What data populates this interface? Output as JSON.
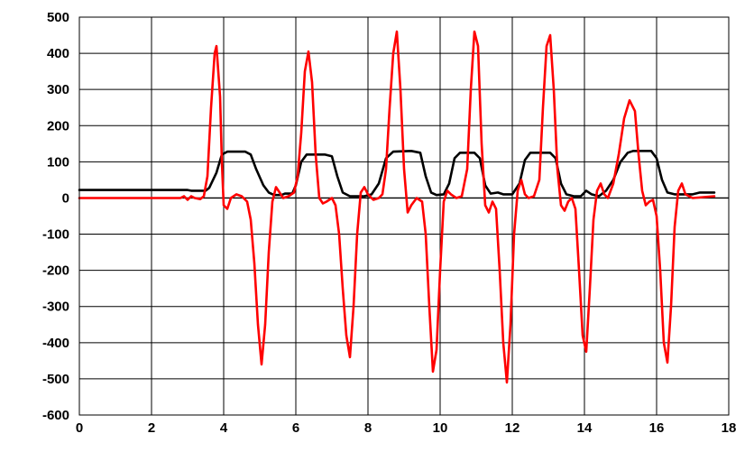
{
  "chart_data": {
    "type": "line",
    "title": "",
    "xlabel": "",
    "ylabel": "",
    "xlim": [
      0,
      18
    ],
    "ylim": [
      -600,
      500
    ],
    "grid": true,
    "legend": "none",
    "x_ticks": [
      0,
      2,
      4,
      6,
      8,
      10,
      12,
      14,
      16,
      18
    ],
    "y_ticks": [
      500,
      400,
      300,
      200,
      100,
      0,
      -100,
      -200,
      -300,
      -400,
      -500,
      -600
    ],
    "series": [
      {
        "color": "#000000",
        "points": [
          [
            0,
            22
          ],
          [
            2.9,
            22
          ],
          [
            3.0,
            22
          ],
          [
            3.1,
            20
          ],
          [
            3.3,
            20
          ],
          [
            3.5,
            20
          ],
          [
            3.6,
            28
          ],
          [
            3.8,
            70
          ],
          [
            3.95,
            120
          ],
          [
            4.1,
            128
          ],
          [
            4.6,
            128
          ],
          [
            4.75,
            120
          ],
          [
            4.9,
            80
          ],
          [
            5.1,
            35
          ],
          [
            5.25,
            15
          ],
          [
            5.4,
            8
          ],
          [
            5.6,
            8
          ],
          [
            5.7,
            12
          ],
          [
            5.9,
            12
          ],
          [
            6.0,
            35
          ],
          [
            6.15,
            100
          ],
          [
            6.3,
            120
          ],
          [
            6.8,
            120
          ],
          [
            7.0,
            115
          ],
          [
            7.15,
            60
          ],
          [
            7.3,
            15
          ],
          [
            7.5,
            5
          ],
          [
            7.9,
            5
          ],
          [
            8.1,
            10
          ],
          [
            8.3,
            40
          ],
          [
            8.5,
            110
          ],
          [
            8.7,
            128
          ],
          [
            9.2,
            130
          ],
          [
            9.45,
            125
          ],
          [
            9.6,
            60
          ],
          [
            9.75,
            15
          ],
          [
            9.9,
            8
          ],
          [
            10.1,
            10
          ],
          [
            10.25,
            40
          ],
          [
            10.4,
            110
          ],
          [
            10.55,
            125
          ],
          [
            10.95,
            125
          ],
          [
            11.1,
            110
          ],
          [
            11.25,
            35
          ],
          [
            11.4,
            12
          ],
          [
            11.6,
            15
          ],
          [
            11.75,
            10
          ],
          [
            12.0,
            10
          ],
          [
            12.2,
            40
          ],
          [
            12.35,
            105
          ],
          [
            12.5,
            125
          ],
          [
            13.05,
            125
          ],
          [
            13.2,
            110
          ],
          [
            13.35,
            40
          ],
          [
            13.5,
            10
          ],
          [
            13.7,
            5
          ],
          [
            13.9,
            5
          ],
          [
            14.05,
            20
          ],
          [
            14.2,
            10
          ],
          [
            14.4,
            5
          ],
          [
            14.6,
            20
          ],
          [
            14.8,
            50
          ],
          [
            15.0,
            100
          ],
          [
            15.2,
            125
          ],
          [
            15.35,
            130
          ],
          [
            15.85,
            130
          ],
          [
            16.0,
            110
          ],
          [
            16.15,
            50
          ],
          [
            16.3,
            15
          ],
          [
            16.5,
            10
          ],
          [
            16.7,
            10
          ],
          [
            17.0,
            10
          ],
          [
            17.2,
            15
          ],
          [
            17.6,
            15
          ]
        ]
      },
      {
        "color": "#ff0000",
        "points": [
          [
            0,
            0
          ],
          [
            2.6,
            0
          ],
          [
            2.8,
            0
          ],
          [
            2.9,
            5
          ],
          [
            3.0,
            -5
          ],
          [
            3.1,
            5
          ],
          [
            3.2,
            0
          ],
          [
            3.35,
            -3
          ],
          [
            3.45,
            5
          ],
          [
            3.55,
            60
          ],
          [
            3.65,
            250
          ],
          [
            3.75,
            400
          ],
          [
            3.8,
            420
          ],
          [
            3.9,
            280
          ],
          [
            3.95,
            100
          ],
          [
            4.0,
            -20
          ],
          [
            4.1,
            -30
          ],
          [
            4.2,
            0
          ],
          [
            4.35,
            10
          ],
          [
            4.5,
            5
          ],
          [
            4.65,
            -10
          ],
          [
            4.75,
            -60
          ],
          [
            4.85,
            -180
          ],
          [
            4.95,
            -350
          ],
          [
            5.05,
            -460
          ],
          [
            5.15,
            -350
          ],
          [
            5.25,
            -150
          ],
          [
            5.35,
            -10
          ],
          [
            5.45,
            30
          ],
          [
            5.55,
            15
          ],
          [
            5.65,
            0
          ],
          [
            5.8,
            5
          ],
          [
            5.95,
            15
          ],
          [
            6.05,
            60
          ],
          [
            6.15,
            180
          ],
          [
            6.25,
            350
          ],
          [
            6.35,
            405
          ],
          [
            6.45,
            320
          ],
          [
            6.55,
            120
          ],
          [
            6.65,
            0
          ],
          [
            6.75,
            -15
          ],
          [
            6.85,
            -10
          ],
          [
            7.0,
            0
          ],
          [
            7.1,
            -20
          ],
          [
            7.2,
            -100
          ],
          [
            7.3,
            -250
          ],
          [
            7.4,
            -380
          ],
          [
            7.5,
            -440
          ],
          [
            7.6,
            -300
          ],
          [
            7.7,
            -100
          ],
          [
            7.8,
            15
          ],
          [
            7.9,
            30
          ],
          [
            8.0,
            10
          ],
          [
            8.15,
            -5
          ],
          [
            8.3,
            0
          ],
          [
            8.4,
            10
          ],
          [
            8.5,
            80
          ],
          [
            8.6,
            250
          ],
          [
            8.7,
            400
          ],
          [
            8.8,
            460
          ],
          [
            8.9,
            300
          ],
          [
            9.0,
            80
          ],
          [
            9.1,
            -40
          ],
          [
            9.2,
            -20
          ],
          [
            9.35,
            0
          ],
          [
            9.5,
            -10
          ],
          [
            9.6,
            -100
          ],
          [
            9.7,
            -300
          ],
          [
            9.8,
            -480
          ],
          [
            9.9,
            -420
          ],
          [
            10.0,
            -200
          ],
          [
            10.1,
            -10
          ],
          [
            10.2,
            20
          ],
          [
            10.3,
            10
          ],
          [
            10.45,
            0
          ],
          [
            10.6,
            5
          ],
          [
            10.75,
            80
          ],
          [
            10.85,
            300
          ],
          [
            10.95,
            460
          ],
          [
            11.05,
            420
          ],
          [
            11.15,
            150
          ],
          [
            11.25,
            -20
          ],
          [
            11.35,
            -40
          ],
          [
            11.45,
            -10
          ],
          [
            11.55,
            -30
          ],
          [
            11.65,
            -200
          ],
          [
            11.75,
            -400
          ],
          [
            11.85,
            -510
          ],
          [
            11.95,
            -350
          ],
          [
            12.05,
            -100
          ],
          [
            12.15,
            20
          ],
          [
            12.25,
            50
          ],
          [
            12.35,
            10
          ],
          [
            12.45,
            0
          ],
          [
            12.6,
            5
          ],
          [
            12.75,
            50
          ],
          [
            12.85,
            250
          ],
          [
            12.95,
            420
          ],
          [
            13.05,
            450
          ],
          [
            13.15,
            300
          ],
          [
            13.25,
            80
          ],
          [
            13.35,
            -20
          ],
          [
            13.45,
            -35
          ],
          [
            13.55,
            -10
          ],
          [
            13.65,
            0
          ],
          [
            13.75,
            -30
          ],
          [
            13.85,
            -200
          ],
          [
            13.95,
            -380
          ],
          [
            14.05,
            -425
          ],
          [
            14.15,
            -250
          ],
          [
            14.25,
            -60
          ],
          [
            14.35,
            20
          ],
          [
            14.45,
            40
          ],
          [
            14.55,
            10
          ],
          [
            14.65,
            0
          ],
          [
            14.8,
            40
          ],
          [
            14.95,
            120
          ],
          [
            15.1,
            220
          ],
          [
            15.25,
            270
          ],
          [
            15.4,
            240
          ],
          [
            15.5,
            120
          ],
          [
            15.6,
            20
          ],
          [
            15.7,
            -20
          ],
          [
            15.8,
            -10
          ],
          [
            15.9,
            -5
          ],
          [
            16.0,
            -50
          ],
          [
            16.1,
            -200
          ],
          [
            16.2,
            -400
          ],
          [
            16.3,
            -455
          ],
          [
            16.4,
            -300
          ],
          [
            16.5,
            -80
          ],
          [
            16.6,
            20
          ],
          [
            16.7,
            40
          ],
          [
            16.8,
            10
          ],
          [
            17.0,
            0
          ],
          [
            17.6,
            5
          ]
        ]
      }
    ]
  }
}
